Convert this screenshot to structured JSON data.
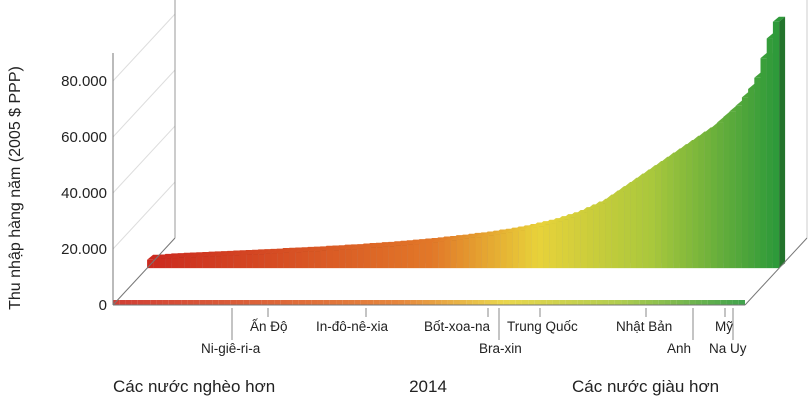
{
  "chart_data": {
    "type": "bar",
    "title": "",
    "xlabel": "2014",
    "ylabel": "Thu nhập hàng năm (2005 $ PPP)",
    "ylim": [
      0,
      90000
    ],
    "yticks": [
      0,
      20000,
      40000,
      60000,
      80000
    ],
    "ytick_labels": [
      "0",
      "20.000",
      "40.000",
      "60.000",
      "80.000"
    ],
    "x_left_label": "Các nước nghèo hơn",
    "x_right_label": "Các nước giàu hơn",
    "x_center_label": "2014",
    "country_labels": [
      "Ni-giê-ri-a",
      "Ấn Độ",
      "In-đô-nê-xia",
      "Bốt-xoa-na",
      "Bra-xin",
      "Trung Quốc",
      "Nhật Bản",
      "Anh",
      "Mỹ",
      "Na Uy"
    ],
    "colors": {
      "poor": "#cc2a1f",
      "middle": "#e8d23a",
      "rich": "#2e9a3a"
    },
    "series": [
      {
        "values": [
          3000,
          3100,
          3300,
          3500,
          3600,
          3700,
          3800,
          3900,
          4000,
          4100,
          4200,
          4300,
          4400,
          4500,
          4600,
          4700,
          4800,
          4900,
          5000,
          5100,
          5200,
          5400,
          5500,
          5600,
          5700,
          5800,
          5900,
          6000,
          6200,
          6300,
          6400,
          6600,
          6700,
          6800,
          7000,
          7200,
          7300,
          7500,
          7600,
          7800,
          8000,
          8200,
          8400,
          8600,
          8800,
          9000,
          9200,
          9500,
          9700,
          10000,
          10200,
          10500,
          10800,
          11000,
          11300,
          11600,
          12000,
          12300,
          12700,
          13100,
          13500,
          14000,
          14500,
          15000,
          15500,
          16100,
          16800,
          17500,
          18200,
          19000,
          20000,
          21000,
          22000,
          23000,
          24500,
          26000,
          27500,
          29000,
          30500,
          32000,
          33500,
          35000,
          36500,
          38000,
          39500,
          41000,
          42500,
          44000,
          45500,
          47000,
          48500,
          50000,
          52000,
          54000,
          56000,
          58000,
          61000,
          64000,
          68000,
          75000,
          82000,
          88000
        ]
      }
    ]
  }
}
